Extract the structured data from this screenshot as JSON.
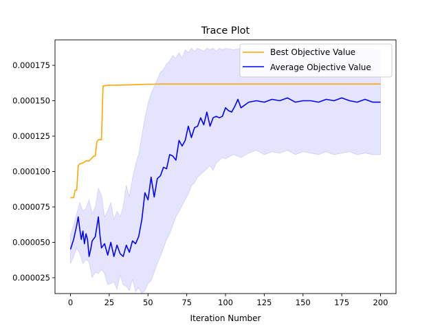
{
  "chart_data": {
    "type": "line",
    "title": "Trace Plot",
    "xlabel": "Iteration Number",
    "ylabel": "",
    "xlim": [
      -10,
      210
    ],
    "ylim": [
      1.38e-05,
      0.000193
    ],
    "xticks": [
      0,
      25,
      50,
      75,
      100,
      125,
      150,
      175,
      200
    ],
    "yticks": [
      2.5e-05,
      5e-05,
      7.5e-05,
      0.0001,
      0.000125,
      0.00015,
      0.000175
    ],
    "ytick_labels": [
      "0.000025",
      "0.000050",
      "0.000075",
      "0.000100",
      "0.000125",
      "0.000150",
      "0.000175"
    ],
    "grid": false,
    "legend_position": "top-right",
    "colors": {
      "best": "#ffa500",
      "average": "#0000ff",
      "band": "#e4e4ff",
      "band_edge": "#cfcff7"
    },
    "series": [
      {
        "name": "Best Objective Value",
        "x": [
          0,
          2,
          3,
          4,
          5,
          6,
          8,
          10,
          12,
          15,
          16,
          17,
          18,
          19,
          20,
          21,
          25,
          30,
          40,
          50,
          60,
          100,
          150,
          200
        ],
        "values": [
          8.15e-05,
          8.15e-05,
          8.7e-05,
          8.7e-05,
          0.000104,
          0.0001055,
          0.000106,
          0.0001075,
          0.0001075,
          0.000111,
          0.000111,
          0.000121,
          0.0001225,
          0.0001225,
          0.0001225,
          0.0001605,
          0.000161,
          0.000161,
          0.0001613,
          0.0001617,
          0.0001618,
          0.0001618,
          0.0001618,
          0.0001618
        ]
      },
      {
        "name": "Average Objective Value",
        "x": [
          0,
          2,
          4,
          5,
          6,
          7,
          8,
          9,
          10,
          11,
          12,
          13,
          14,
          16,
          18,
          19,
          20,
          22,
          24,
          26,
          28,
          30,
          32,
          34,
          36,
          38,
          40,
          42,
          44,
          46,
          48,
          50,
          52,
          54,
          56,
          58,
          60,
          62,
          64,
          66,
          68,
          70,
          72,
          74,
          76,
          78,
          80,
          82,
          84,
          86,
          88,
          90,
          92,
          94,
          96,
          98,
          100,
          102,
          104,
          106,
          108,
          110,
          115,
          120,
          125,
          130,
          135,
          140,
          145,
          150,
          155,
          160,
          165,
          170,
          175,
          180,
          185,
          190,
          195,
          200
        ],
        "values": [
          4.5e-05,
          5.2e-05,
          6.2e-05,
          6.8e-05,
          5.9e-05,
          5.2e-05,
          5.8e-05,
          4.9e-05,
          5.6e-05,
          5.2e-05,
          4e-05,
          4.5e-05,
          5.1e-05,
          5.4e-05,
          6.8e-05,
          5.5e-05,
          4.6e-05,
          4.9e-05,
          4.1e-05,
          5e-05,
          4e-05,
          4.8e-05,
          4.2e-05,
          4e-05,
          4.8e-05,
          4.3e-05,
          5.1e-05,
          4.9e-05,
          5.4e-05,
          6.6e-05,
          8.5e-05,
          8e-05,
          9.6e-05,
          8.2e-05,
          9.5e-05,
          9.7e-05,
          0.000103,
          0.000102,
          0.000112,
          0.000111,
          0.000108,
          0.000122,
          0.000118,
          0.000122,
          0.000132,
          0.000124,
          0.000131,
          0.000132,
          0.000138,
          0.000133,
          0.000142,
          0.000132,
          0.000138,
          0.000139,
          0.000138,
          0.000139,
          0.000145,
          0.000143,
          0.000142,
          0.000146,
          0.000151,
          0.000145,
          0.000149,
          0.00015,
          0.000149,
          0.000151,
          0.00015,
          0.000152,
          0.000149,
          0.00015,
          0.00015,
          0.000149,
          0.000151,
          0.00015,
          0.000152,
          0.00015,
          0.000149,
          0.000151,
          0.000149,
          0.000149
        ]
      }
    ],
    "band": {
      "x": [
        0,
        2,
        4,
        6,
        8,
        10,
        12,
        14,
        16,
        18,
        20,
        22,
        24,
        26,
        28,
        30,
        32,
        34,
        36,
        38,
        40,
        42,
        44,
        46,
        48,
        50,
        52,
        54,
        56,
        58,
        60,
        62,
        64,
        66,
        68,
        70,
        72,
        74,
        76,
        78,
        80,
        82,
        84,
        86,
        88,
        90,
        92,
        94,
        96,
        98,
        100,
        105,
        110,
        115,
        120,
        125,
        130,
        135,
        140,
        145,
        150,
        155,
        160,
        165,
        170,
        175,
        180,
        185,
        190,
        195,
        200
      ],
      "lower": [
        3.5e-05,
        4e-05,
        4.6e-05,
        4.2e-05,
        3.5e-05,
        3.8e-05,
        3.6e-05,
        2.5e-05,
        2.9e-05,
        2.8e-05,
        3.1e-05,
        2.8e-05,
        2e-05,
        2.1e-05,
        2.2e-05,
        1.7e-05,
        2.7e-05,
        2e-05,
        1.9e-05,
        1.6e-05,
        2.4e-05,
        1.5e-05,
        1.8e-05,
        1.4e-05,
        1.6e-05,
        2.1e-05,
        2.3e-05,
        2.9e-05,
        3.5e-05,
        4e-05,
        4.6e-05,
        5.2e-05,
        5.6e-05,
        6.2e-05,
        6.8e-05,
        7.2e-05,
        7.6e-05,
        8e-05,
        8.4e-05,
        9e-05,
        9.2e-05,
        9.6e-05,
        9.8e-05,
        0.0001,
        0.000102,
        0.000104,
        0.000101,
        0.000106,
        0.000108,
        0.00011,
        0.000109,
        0.000112,
        0.00011,
        0.000113,
        0.000115,
        0.000112,
        0.000114,
        0.000113,
        0.000115,
        0.000112,
        0.000114,
        0.000113,
        0.000112,
        0.000114,
        0.000112,
        0.000113,
        0.000114,
        0.000112,
        0.000113,
        0.000112,
        0.000112
      ],
      "upper": [
        5.5e-05,
        6.2e-05,
        7e-05,
        7.8e-05,
        7.2e-05,
        7.4e-05,
        8e-05,
        7e-05,
        7.5e-05,
        8.8e-05,
        8.3e-05,
        6.8e-05,
        7.2e-05,
        7.8e-05,
        6.6e-05,
        7.2e-05,
        6.8e-05,
        7.5e-05,
        9e-05,
        8.2e-05,
        9.5e-05,
        0.000105,
        0.000112,
        0.000125,
        0.000138,
        0.000148,
        0.000155,
        0.00016,
        0.000165,
        0.00017,
        0.000172,
        0.000176,
        0.000178,
        0.000182,
        0.00018,
        0.000184,
        0.00018,
        0.000186,
        0.000184,
        0.000187,
        0.000185,
        0.000187,
        0.000186,
        0.000185,
        0.000187,
        0.000186,
        0.000187,
        0.000185,
        0.000187,
        0.000186,
        0.000187,
        0.000186,
        0.000187,
        0.000186,
        0.000187,
        0.000186,
        0.000187,
        0.000186,
        0.000187,
        0.000186,
        0.000187,
        0.000186,
        0.000187,
        0.000186,
        0.000187,
        0.000186,
        0.000187,
        0.000186,
        0.000187,
        0.000186,
        0.000186
      ]
    }
  }
}
